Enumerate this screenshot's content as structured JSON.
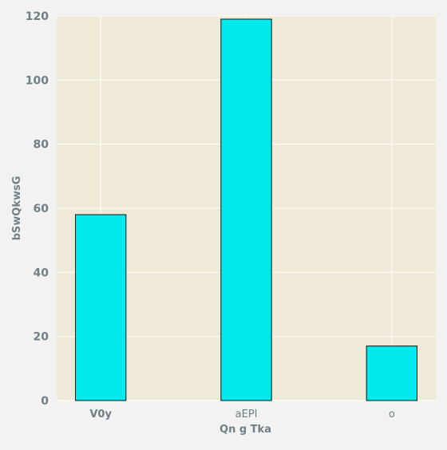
{
  "chart_data": {
    "type": "bar",
    "title": "",
    "xlabel": "Qn g Tka",
    "ylabel": "bSwQkwsG",
    "categories": [
      "V0y",
      "aEPl",
      "o"
    ],
    "values": [
      58,
      119,
      17
    ],
    "ylim": [
      0,
      120
    ],
    "yticks": [
      0,
      20,
      40,
      60,
      80,
      100,
      120
    ],
    "grid": true,
    "legend": "none",
    "colors": {
      "bar": "#00eaee",
      "bar_edge": "#111111",
      "plot_bg": "#efe9d8",
      "page_bg": "#f2f2f2",
      "grid": "#fbf8ef",
      "text": "#6e7f86"
    }
  }
}
